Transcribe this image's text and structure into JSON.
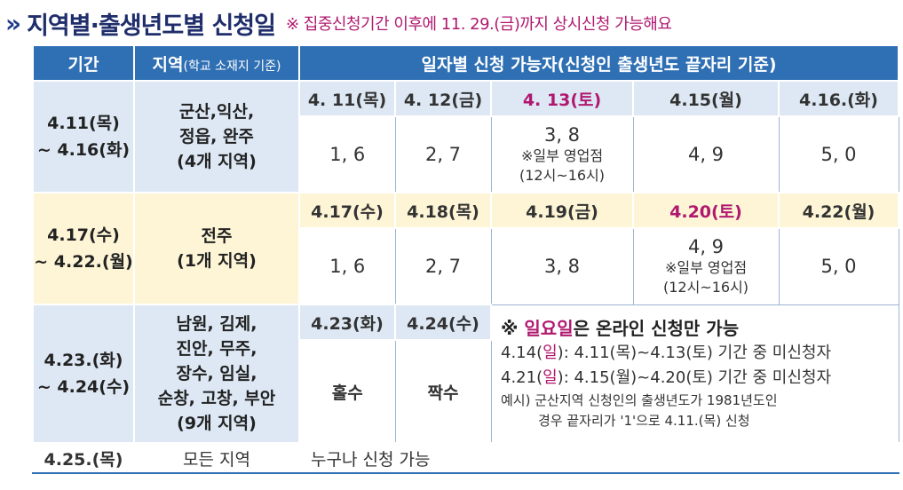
{
  "header": {
    "chevron": "»",
    "title": "지역별·출생년도별 신청일",
    "note": "※ 집중신청기간 이후에 11. 29.(금)까지 상시신청 가능해요"
  },
  "table": {
    "col_period": "기간",
    "col_region": "지역",
    "col_region_sub": "(학교 소재지 기준)",
    "col_days": "일자별 신청 가능자(신청인 출생년도 끝자리 기준)",
    "rows": [
      {
        "period1": "4.11(목)",
        "period2": "~ 4.16(화)",
        "region": [
          "군산,익산,",
          "정읍, 완주",
          "(4개 지역)"
        ],
        "days": [
          "4. 11(목)",
          "4. 12(금)",
          "4. 13(토)",
          "4.15(월)",
          "4.16.(화)"
        ],
        "values": [
          "1, 6",
          "2, 7",
          "3, 8",
          "4, 9",
          "5, 0"
        ],
        "extra": [
          "※일부 영업점",
          "(12시~16시)"
        ]
      },
      {
        "period1": "4.17(수)",
        "period2": "~ 4.22.(월)",
        "region": [
          "전주",
          "(1개 지역)"
        ],
        "days": [
          "4.17(수)",
          "4.18(목)",
          "4.19(금)",
          "4.20(토)",
          "4.22(월)"
        ],
        "values": [
          "1, 6",
          "2, 7",
          "3, 8",
          "4, 9",
          "5, 0"
        ],
        "extra": [
          "※일부 영업점",
          "(12시~16시)"
        ]
      },
      {
        "period1": "4.23.(화)",
        "period2": "~ 4.24(수)",
        "region": [
          "남원, 김제,",
          "진안, 무주,",
          "장수, 임실,",
          "순창, 고창, 부안",
          "(9개 지역)"
        ],
        "days": [
          "4.23(화)",
          "4.24(수)"
        ],
        "values": [
          "홀수",
          "짝수"
        ],
        "note_title_pre": "※ ",
        "note_title_pink": "일요일",
        "note_title_post": "은 온라인 신청만 가능",
        "note_line1_pre": "4.14(",
        "note_line1_pink": "일",
        "note_line1_post": "): 4.11(목)~4.13(토) 기간 중 미신청자",
        "note_line2_pre": "4.21(",
        "note_line2_pink": "일",
        "note_line2_post": "): 4.15(월)~4.20(토) 기간 중 미신청자",
        "example1": "예시) 군산지역 신청인의 출생년도가 1981년도인",
        "example2": "경우 끝자리가 '1'으로 4.11.(목) 신청"
      }
    ],
    "last_row": {
      "period": "4.25.(목)",
      "region": "모든 지역",
      "desc": "누구나 신청 가능"
    }
  }
}
